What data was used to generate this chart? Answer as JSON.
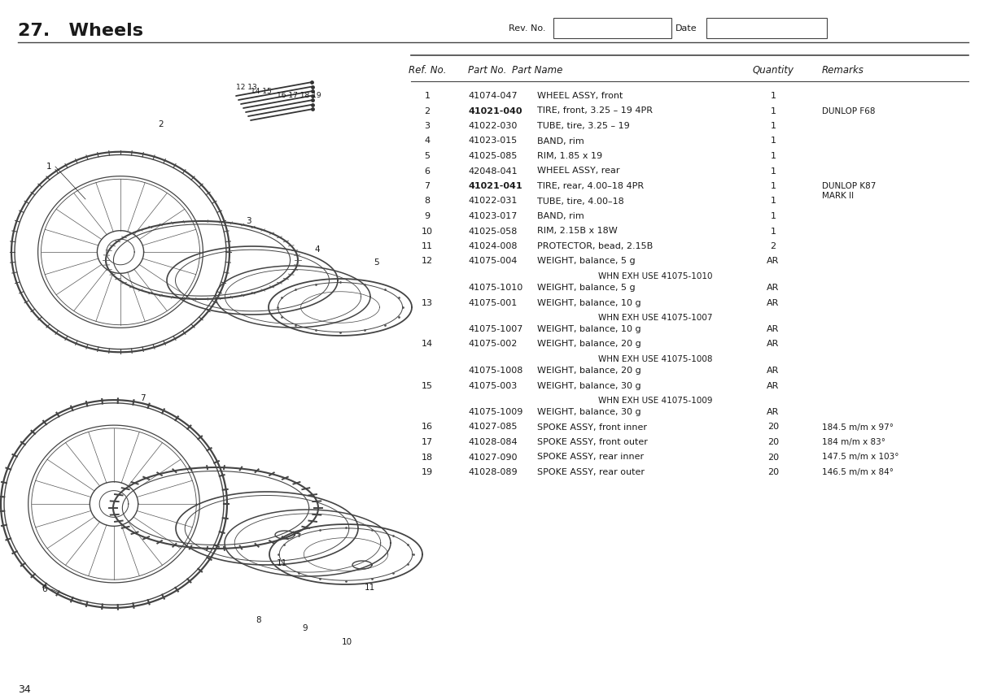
{
  "title": "27.   Wheels",
  "page_number": "34",
  "header_cols": [
    "Ref. No.",
    "Part No.",
    "Part Name",
    "Quantity",
    "Remarks"
  ],
  "rows": [
    {
      "ref": "1",
      "part": "41074-047",
      "name": "WHEEL ASSY, front",
      "qty": "1",
      "remarks": "",
      "bold_part": false,
      "sub": false
    },
    {
      "ref": "2",
      "part": "41021-040",
      "name": "TIRE, front, 3.25 – 19 4PR",
      "qty": "1",
      "remarks": "DUNLOP F68",
      "bold_part": true,
      "sub": false
    },
    {
      "ref": "3",
      "part": "41022-030",
      "name": "TUBE, tire, 3.25 – 19",
      "qty": "1",
      "remarks": "",
      "bold_part": false,
      "sub": false
    },
    {
      "ref": "4",
      "part": "41023-015",
      "name": "BAND, rim",
      "qty": "1",
      "remarks": "",
      "bold_part": false,
      "sub": false
    },
    {
      "ref": "5",
      "part": "41025-085",
      "name": "RIM, 1.85 x 19",
      "qty": "1",
      "remarks": "",
      "bold_part": false,
      "sub": false
    },
    {
      "ref": "6",
      "part": "42048-041",
      "name": "WHEEL ASSY, rear",
      "qty": "1",
      "remarks": "",
      "bold_part": false,
      "sub": false
    },
    {
      "ref": "7",
      "part": "41021-041",
      "name": "TIRE, rear, 4.00–18 4PR",
      "qty": "1",
      "remarks": "DUNLOP K87\nMARK II",
      "bold_part": true,
      "sub": false
    },
    {
      "ref": "8",
      "part": "41022-031",
      "name": "TUBE, tire, 4.00–18",
      "qty": "1",
      "remarks": "",
      "bold_part": false,
      "sub": false
    },
    {
      "ref": "9",
      "part": "41023-017",
      "name": "BAND, rim",
      "qty": "1",
      "remarks": "",
      "bold_part": false,
      "sub": false
    },
    {
      "ref": "10",
      "part": "41025-058",
      "name": "RIM, 2.15B x 18W",
      "qty": "1",
      "remarks": "",
      "bold_part": false,
      "sub": false
    },
    {
      "ref": "11",
      "part": "41024-008",
      "name": "PROTECTOR, bead, 2.15B",
      "qty": "2",
      "remarks": "",
      "bold_part": false,
      "sub": false
    },
    {
      "ref": "12",
      "part": "41075-004",
      "name": "WEIGHT, balance, 5 g",
      "qty": "AR",
      "remarks": "",
      "bold_part": false,
      "sub": false
    },
    {
      "ref": "",
      "part": "",
      "name": "WHN EXH USE 41075-1010",
      "qty": "",
      "remarks": "",
      "bold_part": false,
      "sub": true
    },
    {
      "ref": "",
      "part": "41075-1010",
      "name": "WEIGHT, balance, 5 g",
      "qty": "AR",
      "remarks": "",
      "bold_part": false,
      "sub": false
    },
    {
      "ref": "13",
      "part": "41075-001",
      "name": "WEIGHT, balance, 10 g",
      "qty": "AR",
      "remarks": "",
      "bold_part": false,
      "sub": false
    },
    {
      "ref": "",
      "part": "",
      "name": "WHN EXH USE 41075-1007",
      "qty": "",
      "remarks": "",
      "bold_part": false,
      "sub": true
    },
    {
      "ref": "",
      "part": "41075-1007",
      "name": "WEIGHT, balance, 10 g",
      "qty": "AR",
      "remarks": "",
      "bold_part": false,
      "sub": false
    },
    {
      "ref": "14",
      "part": "41075-002",
      "name": "WEIGHT, balance, 20 g",
      "qty": "AR",
      "remarks": "",
      "bold_part": false,
      "sub": false
    },
    {
      "ref": "",
      "part": "",
      "name": "WHN EXH USE 41075-1008",
      "qty": "",
      "remarks": "",
      "bold_part": false,
      "sub": true
    },
    {
      "ref": "",
      "part": "41075-1008",
      "name": "WEIGHT, balance, 20 g",
      "qty": "AR",
      "remarks": "",
      "bold_part": false,
      "sub": false
    },
    {
      "ref": "15",
      "part": "41075-003",
      "name": "WEIGHT, balance, 30 g",
      "qty": "AR",
      "remarks": "",
      "bold_part": false,
      "sub": false
    },
    {
      "ref": "",
      "part": "",
      "name": "WHN EXH USE 41075-1009",
      "qty": "",
      "remarks": "",
      "bold_part": false,
      "sub": true
    },
    {
      "ref": "",
      "part": "41075-1009",
      "name": "WEIGHT, balance, 30 g",
      "qty": "AR",
      "remarks": "",
      "bold_part": false,
      "sub": false
    },
    {
      "ref": "16",
      "part": "41027-085",
      "name": "SPOKE ASSY, front inner",
      "qty": "20",
      "remarks": "184.5 m/m x 97°",
      "bold_part": false,
      "sub": false
    },
    {
      "ref": "17",
      "part": "41028-084",
      "name": "SPOKE ASSY, front outer",
      "qty": "20",
      "remarks": "184 m/m x 83°",
      "bold_part": false,
      "sub": false
    },
    {
      "ref": "18",
      "part": "41027-090",
      "name": "SPOKE ASSY, rear inner",
      "qty": "20",
      "remarks": "147.5 m/m x 103°",
      "bold_part": false,
      "sub": false
    },
    {
      "ref": "19",
      "part": "41028-089",
      "name": "SPOKE ASSY, rear outer",
      "qty": "20",
      "remarks": "146.5 m/m x 84°",
      "bold_part": false,
      "sub": false
    }
  ],
  "bg_color": "#ffffff",
  "text_color": "#1a1a1a",
  "line_color": "#444444"
}
